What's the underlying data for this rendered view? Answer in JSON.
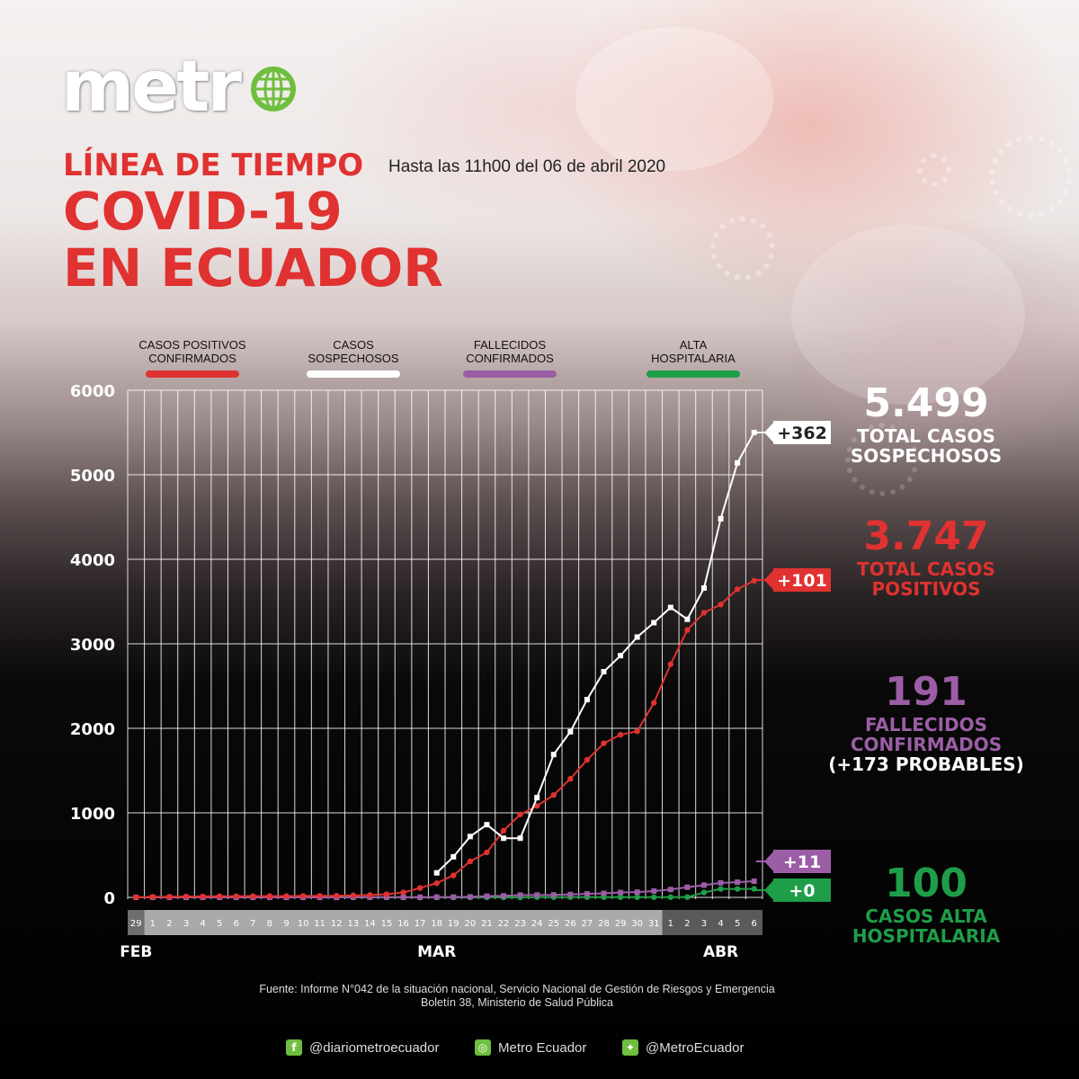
{
  "brand": {
    "logo_text": "metr",
    "accent": "#6fbf3e"
  },
  "header": {
    "heading": "LÍNEA DE TIEMPO",
    "as_of": "Hasta las 11h00 del 06 de abril 2020",
    "title_line1": "COVID-19",
    "title_line2": "EN ECUADOR"
  },
  "legend": [
    {
      "line1": "CASOS POSITIVOS",
      "line2": "CONFIRMADOS",
      "color": "#e03231"
    },
    {
      "line1": "CASOS",
      "line2": "SOSPECHOSOS",
      "color": "#ffffff"
    },
    {
      "line1": "FALLECIDOS",
      "line2": "CONFIRMADOS",
      "color": "#9b5ea6"
    },
    {
      "line1": "ALTA",
      "line2": "HOSPITALARIA",
      "color": "#1e9e48"
    }
  ],
  "chart_data": {
    "type": "line",
    "ylim": [
      0,
      6000
    ],
    "y_ticks": [
      "6000",
      "5000",
      "4000",
      "3000",
      "2000",
      "1000",
      "0"
    ],
    "y_tick_values": [
      6000,
      5000,
      4000,
      3000,
      2000,
      1000,
      0
    ],
    "grid": true,
    "day_labels": [
      "29",
      "1",
      "2",
      "3",
      "4",
      "5",
      "6",
      "7",
      "8",
      "9",
      "10",
      "11",
      "12",
      "13",
      "14",
      "15",
      "16",
      "17",
      "18",
      "19",
      "20",
      "21",
      "22",
      "23",
      "24",
      "25",
      "26",
      "27",
      "28",
      "29",
      "30",
      "31",
      "1",
      "2",
      "3",
      "4",
      "5",
      "6"
    ],
    "month_labels": [
      {
        "label": "FEB",
        "day_index": 0
      },
      {
        "label": "MAR",
        "day_index": 18
      },
      {
        "label": "ABR",
        "day_index": 35
      }
    ],
    "series": [
      {
        "name": "CASOS SOSPECHOSOS",
        "color": "#ffffff",
        "marker": "square",
        "values": [
          null,
          null,
          null,
          null,
          null,
          null,
          null,
          null,
          null,
          null,
          null,
          null,
          null,
          null,
          null,
          null,
          null,
          null,
          290,
          480,
          720,
          860,
          700,
          700,
          1180,
          1690,
          1960,
          2340,
          2670,
          2860,
          3080,
          3250,
          3430,
          3290,
          3660,
          4480,
          5140,
          5500
        ],
        "end_label": "+362"
      },
      {
        "name": "CASOS POSITIVOS CONFIRMADOS",
        "color": "#e03231",
        "marker": "circle",
        "values": [
          1,
          6,
          7,
          10,
          10,
          13,
          13,
          14,
          15,
          15,
          17,
          17,
          19,
          23,
          28,
          37,
          58,
          111,
          168,
          260,
          426,
          532,
          789,
          981,
          1082,
          1211,
          1403,
          1627,
          1823,
          1924,
          1966,
          2302,
          2758,
          3163,
          3368,
          3465,
          3646,
          3747
        ],
        "end_label": "+101"
      },
      {
        "name": "FALLECIDOS CONFIRMADOS",
        "color": "#9b5ea6",
        "marker": "square",
        "values": [
          0,
          0,
          0,
          0,
          0,
          0,
          0,
          0,
          0,
          0,
          0,
          0,
          0,
          2,
          2,
          2,
          2,
          2,
          3,
          4,
          7,
          14,
          18,
          27,
          28,
          29,
          34,
          41,
          48,
          58,
          62,
          75,
          93,
          120,
          145,
          172,
          180,
          191
        ],
        "end_label": "+11"
      },
      {
        "name": "ALTA HOSPITALARIA",
        "color": "#1e9e48",
        "marker": "circle",
        "values": [
          0,
          0,
          0,
          0,
          0,
          0,
          0,
          0,
          0,
          0,
          0,
          0,
          0,
          0,
          0,
          0,
          0,
          0,
          0,
          0,
          0,
          0,
          0,
          0,
          3,
          3,
          3,
          3,
          3,
          3,
          3,
          3,
          3,
          3,
          58,
          100,
          100,
          100
        ],
        "end_label": "+0"
      }
    ]
  },
  "stats": [
    {
      "value": "5.499",
      "line1": "TOTAL CASOS",
      "line2": "SOSPECHOSOS",
      "line3": "",
      "color": "#ffffff"
    },
    {
      "value": "3.747",
      "line1": "TOTAL CASOS",
      "line2": "POSITIVOS",
      "line3": "",
      "color": "#e03231"
    },
    {
      "value": "191",
      "line1": "FALLECIDOS",
      "line2": "CONFIRMADOS",
      "line3": "(+173 PROBABLES)",
      "color": "#9b5ea6"
    },
    {
      "value": "100",
      "line1": "CASOS ALTA",
      "line2": "HOSPITALARIA",
      "line3": "",
      "color": "#1e9e48"
    }
  ],
  "footer": {
    "source_line1": "Fuente: Informe N°042 de la situación nacional, Servicio Nacional de Gestión de Riesgos y Emergencia",
    "source_line2": "Boletín 38, Ministerio de Salud Pública",
    "social": [
      {
        "icon": "facebook-icon",
        "glyph": "f",
        "label": "@diariometroecuador"
      },
      {
        "icon": "instagram-icon",
        "glyph": "◎",
        "label": "Metro Ecuador"
      },
      {
        "icon": "twitter-icon",
        "glyph": "✦",
        "label": "@MetroEcuador"
      }
    ]
  }
}
